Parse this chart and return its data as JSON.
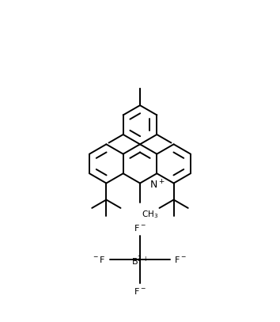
{
  "bg": "#ffffff",
  "lc": "#000000",
  "lw": 1.4,
  "fig_w": 3.54,
  "fig_h": 4.07,
  "dpi": 100,
  "xlim": [
    0,
    354
  ],
  "ylim": [
    0,
    407
  ]
}
